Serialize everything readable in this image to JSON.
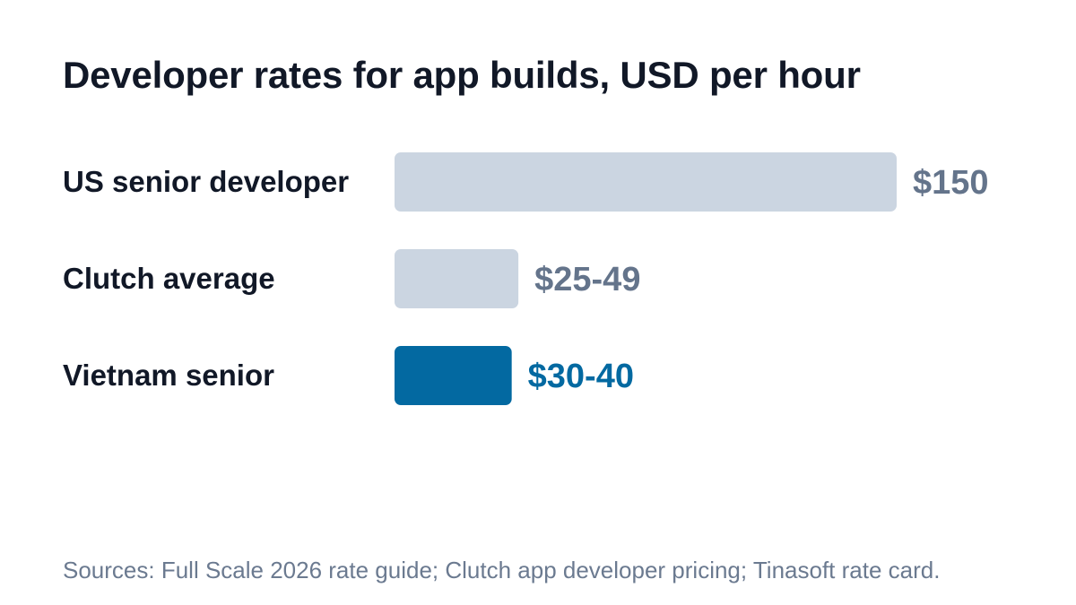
{
  "chart_data": {
    "type": "bar",
    "orientation": "horizontal",
    "title": "Developer rates for app builds, USD per hour",
    "categories": [
      "US senior developer",
      "Clutch average",
      "Vietnam senior"
    ],
    "values": [
      150,
      37,
      35
    ],
    "ranges": [
      [
        150,
        150
      ],
      [
        25,
        49
      ],
      [
        30,
        40
      ]
    ],
    "value_labels": [
      "$150",
      "$25-49",
      "$30-40"
    ],
    "colors": [
      "#cbd5e1",
      "#cbd5e1",
      "#0369a1"
    ],
    "label_colors": [
      "#64748b",
      "#64748b",
      "#0369a1"
    ],
    "highlight_index": 2,
    "xlim": [
      0,
      150
    ],
    "grid": false,
    "xlabel": "",
    "ylabel": ""
  },
  "footnote": "Sources: Full Scale 2026 rate guide; Clutch app developer pricing; Tinasoft rate card."
}
